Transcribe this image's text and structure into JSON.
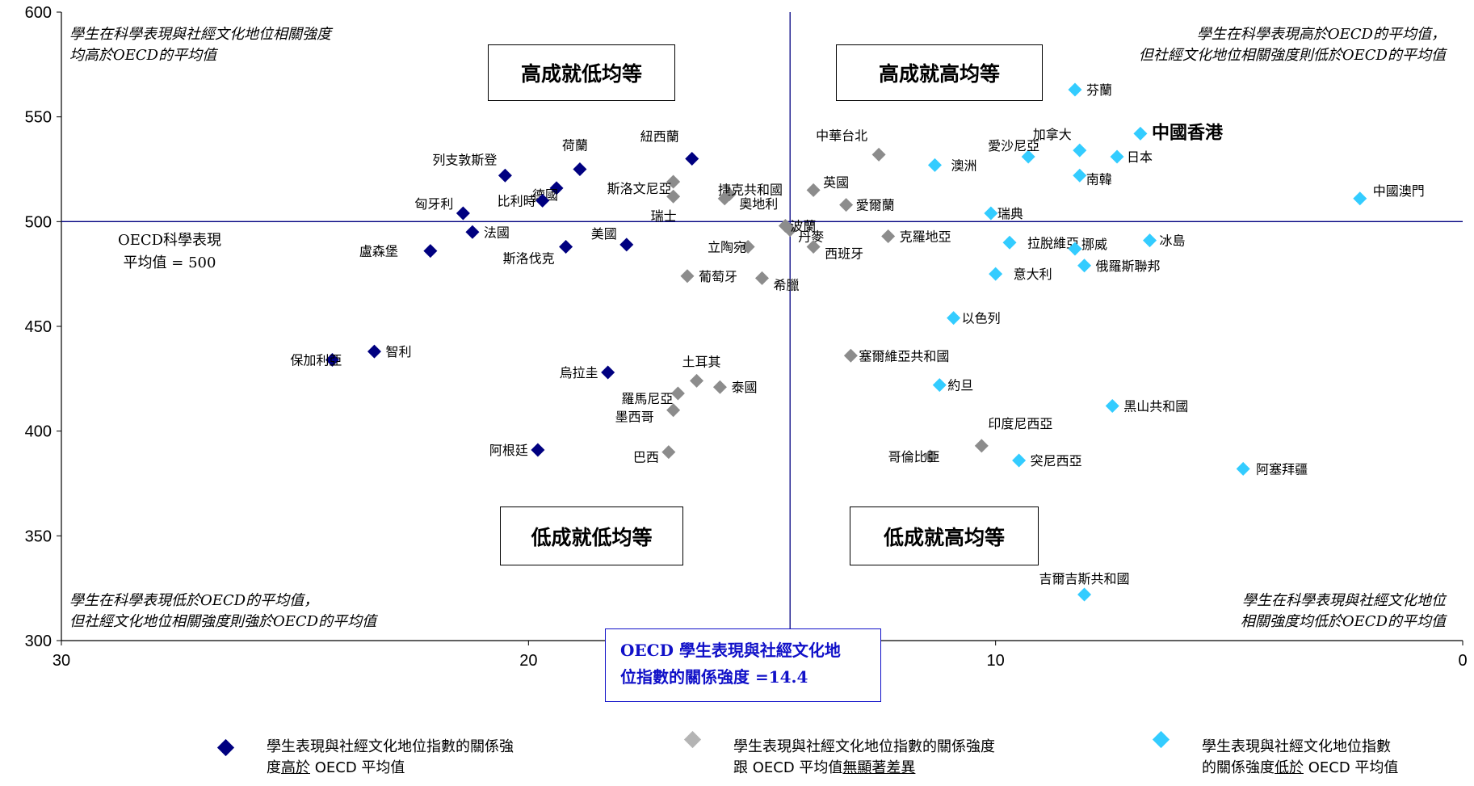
{
  "chart_data": {
    "type": "scatter",
    "xlim": [
      30,
      0
    ],
    "ylim": [
      300,
      600
    ],
    "x_ticks": [
      "30",
      "20",
      "10",
      "0"
    ],
    "y_ticks": [
      "300",
      "350",
      "400",
      "450",
      "500",
      "550",
      "600"
    ],
    "reference_lines": {
      "x": 14.4,
      "y": 500
    },
    "colors": {
      "high": "#000080",
      "avg": "#8c8c8c",
      "low": "#33ccff",
      "reference": "#000080"
    },
    "series": [
      {
        "group": "high",
        "points": [
          {
            "label": "紐西蘭",
            "x": 16.5,
            "y": 530
          },
          {
            "label": "列支敦斯登",
            "x": 20.5,
            "y": 522
          },
          {
            "label": "荷蘭",
            "x": 18.9,
            "y": 525
          },
          {
            "label": "德國",
            "x": 19.4,
            "y": 516
          },
          {
            "label": "比利時",
            "x": 19.7,
            "y": 510
          },
          {
            "label": "匈牙利",
            "x": 21.4,
            "y": 504
          },
          {
            "label": "法國",
            "x": 21.2,
            "y": 495
          },
          {
            "label": "盧森堡",
            "x": 22.1,
            "y": 486
          },
          {
            "label": "斯洛伐克",
            "x": 19.2,
            "y": 488
          },
          {
            "label": "美國",
            "x": 17.9,
            "y": 489
          },
          {
            "label": "保加利亞",
            "x": 24.2,
            "y": 434
          },
          {
            "label": "智利",
            "x": 23.3,
            "y": 438
          },
          {
            "label": "烏拉圭",
            "x": 18.3,
            "y": 428
          },
          {
            "label": "阿根廷",
            "x": 19.8,
            "y": 391
          }
        ]
      },
      {
        "group": "avg",
        "points": [
          {
            "label": "斯洛文尼亞",
            "x": 16.9,
            "y": 519
          },
          {
            "label": "瑞士",
            "x": 16.9,
            "y": 512
          },
          {
            "label": "捷克共和國",
            "x": 15.7,
            "y": 513
          },
          {
            "label": "奧地利",
            "x": 15.8,
            "y": 511
          },
          {
            "label": "中華台北",
            "x": 12.5,
            "y": 532
          },
          {
            "label": "英國",
            "x": 13.9,
            "y": 515
          },
          {
            "label": "愛爾蘭",
            "x": 13.2,
            "y": 508
          },
          {
            "label": "丹麥",
            "x": 14.4,
            "y": 496
          },
          {
            "label": "波蘭",
            "x": 14.5,
            "y": 498
          },
          {
            "label": "克羅地亞",
            "x": 12.3,
            "y": 493
          },
          {
            "label": "西班牙",
            "x": 13.9,
            "y": 488
          },
          {
            "label": "立陶宛",
            "x": 15.3,
            "y": 488
          },
          {
            "label": "葡萄牙",
            "x": 16.6,
            "y": 474
          },
          {
            "label": "希臘",
            "x": 15.0,
            "y": 473
          },
          {
            "label": "塞爾維亞共和國",
            "x": 13.1,
            "y": 436
          },
          {
            "label": "土耳其",
            "x": 16.4,
            "y": 424
          },
          {
            "label": "泰國",
            "x": 15.9,
            "y": 421
          },
          {
            "label": "羅馬尼亞",
            "x": 16.8,
            "y": 418
          },
          {
            "label": "墨西哥",
            "x": 16.9,
            "y": 410
          },
          {
            "label": "巴西",
            "x": 17.0,
            "y": 390
          },
          {
            "label": "哥倫比亞",
            "x": 11.4,
            "y": 388
          },
          {
            "label": "印度尼西亞",
            "x": 10.3,
            "y": 393
          }
        ]
      },
      {
        "group": "low",
        "points": [
          {
            "label": "芬蘭",
            "x": 8.3,
            "y": 563
          },
          {
            "label": "中國香港",
            "x": 6.9,
            "y": 542
          },
          {
            "label": "加拿大",
            "x": 8.2,
            "y": 534
          },
          {
            "label": "愛沙尼亞",
            "x": 9.3,
            "y": 531
          },
          {
            "label": "日本",
            "x": 7.4,
            "y": 531
          },
          {
            "label": "澳洲",
            "x": 11.3,
            "y": 527
          },
          {
            "label": "南韓",
            "x": 8.2,
            "y": 522
          },
          {
            "label": "中國澳門",
            "x": 2.2,
            "y": 511
          },
          {
            "label": "瑞典",
            "x": 10.1,
            "y": 504
          },
          {
            "label": "拉脫維亞",
            "x": 9.7,
            "y": 490
          },
          {
            "label": "挪威",
            "x": 8.3,
            "y": 487
          },
          {
            "label": "冰島",
            "x": 6.7,
            "y": 491
          },
          {
            "label": "俄羅斯聯邦",
            "x": 8.1,
            "y": 479
          },
          {
            "label": "意大利",
            "x": 10.0,
            "y": 475
          },
          {
            "label": "以色列",
            "x": 10.9,
            "y": 454
          },
          {
            "label": "約旦",
            "x": 11.2,
            "y": 422
          },
          {
            "label": "黑山共和國",
            "x": 7.5,
            "y": 412
          },
          {
            "label": "突尼西亞",
            "x": 9.5,
            "y": 386
          },
          {
            "label": "阿塞拜疆",
            "x": 4.7,
            "y": 382
          },
          {
            "label": "吉爾吉斯共和國",
            "x": 8.1,
            "y": 322
          }
        ]
      }
    ]
  },
  "quadrants": {
    "top_left": "高成就低均等",
    "top_right": "高成就高均等",
    "bottom_left": "低成就低均等",
    "bottom_right": "低成就高均等"
  },
  "notes": {
    "top_left": [
      "學生在科學表現與社經文化地位相關強度",
      "均高於OECD的平均值"
    ],
    "top_right": [
      "學生在科學表現高於OECD的平均值，",
      "但社經文化地位相關強度則低於OECD的平均值"
    ],
    "bottom_left": [
      "學生在科學表現低於OECD的平均值，",
      "但社經文化地位相關強度則強於OECD的平均值"
    ],
    "bottom_right": [
      "學生在科學表現與社經文化地位",
      "相關強度均低於OECD的平均值"
    ]
  },
  "oecd_average": {
    "line1": "OECD科學表現",
    "line2": "平均值 = 500"
  },
  "oecd_box": {
    "line1": "OECD 學生表現與社經文化地",
    "line2": "位指數的關係強度 =14.4"
  },
  "legend": [
    {
      "line1": "學生表現與社經文化地位指數的關係強",
      "line2_prefix": "度",
      "line2_under": "高於",
      "line2_suffix": " OECD 平均值",
      "color": "#000080"
    },
    {
      "line1": "學生表現與社經文化地位指數的關係強度",
      "line2_prefix": "跟 OECD 平均值",
      "line2_under": "無顯著差異",
      "line2_suffix": "",
      "color": "#b4b4b4"
    },
    {
      "line1": "學生表現與社經文化地位指數",
      "line2_prefix": "的關係強度",
      "line2_under": "低於",
      "line2_suffix": " OECD 平均值",
      "color": "#33ccff"
    }
  ]
}
